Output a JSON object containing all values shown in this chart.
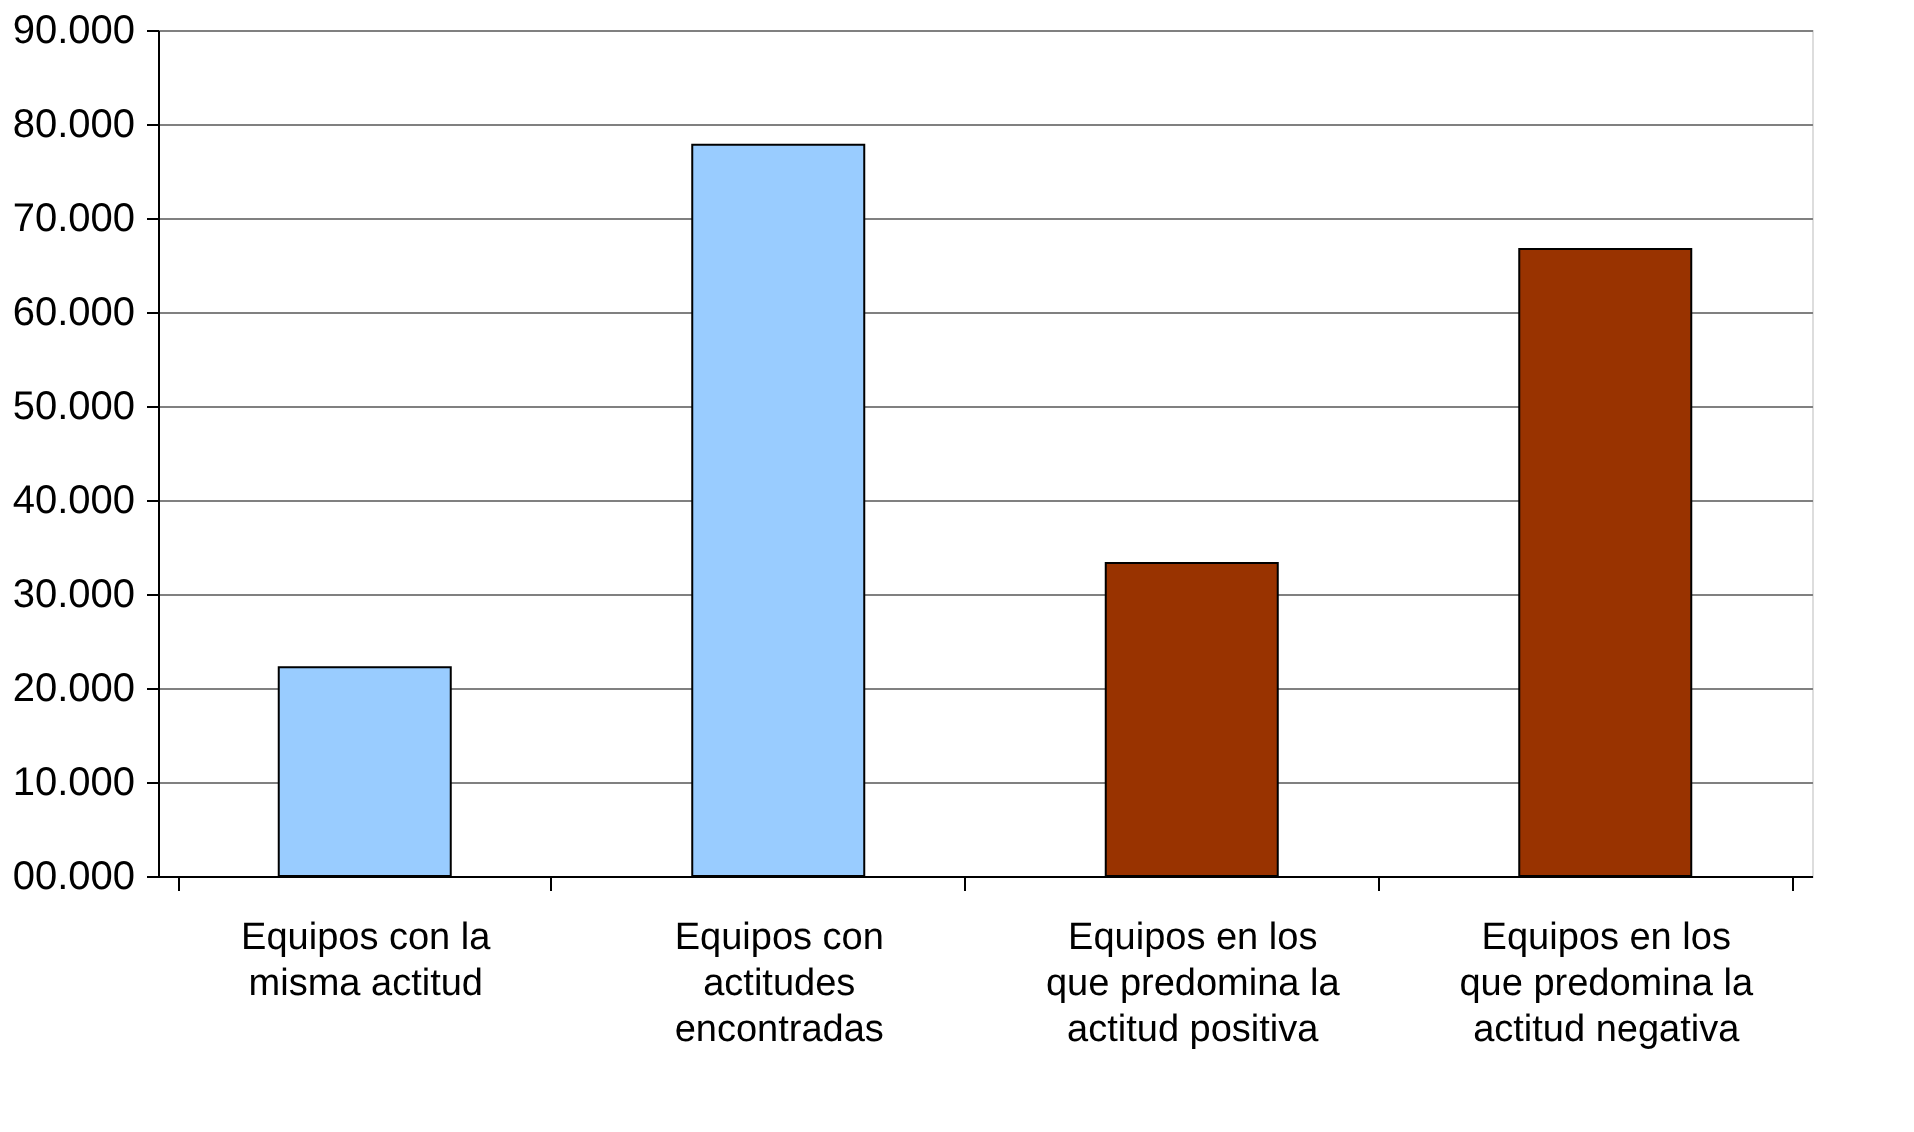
{
  "chart_data": {
    "type": "bar",
    "categories": [
      "Equipos con la\nmisma actitud",
      "Equipos con\nactitudes\nencontradas",
      "Equipos en los\nque predomina la\nactitud positiva",
      "Equipos en los\nque predomina la\nactitud negativa"
    ],
    "values": [
      22.2,
      77.8,
      33.3,
      66.7
    ],
    "colors": [
      "#99ccff",
      "#99ccff",
      "#993300",
      "#993300"
    ],
    "ylim": [
      0,
      90
    ],
    "yticks": [
      {
        "value": 0,
        "label": "00.000"
      },
      {
        "value": 10,
        "label": "10.000"
      },
      {
        "value": 20,
        "label": "20.000"
      },
      {
        "value": 30,
        "label": "30.000"
      },
      {
        "value": 40,
        "label": "40.000"
      },
      {
        "value": 50,
        "label": "50.000"
      },
      {
        "value": 60,
        "label": "60.000"
      },
      {
        "value": 70,
        "label": "70.000"
      },
      {
        "value": 80,
        "label": "80.000"
      },
      {
        "value": 90,
        "label": "90.000"
      }
    ],
    "grid": "y"
  }
}
